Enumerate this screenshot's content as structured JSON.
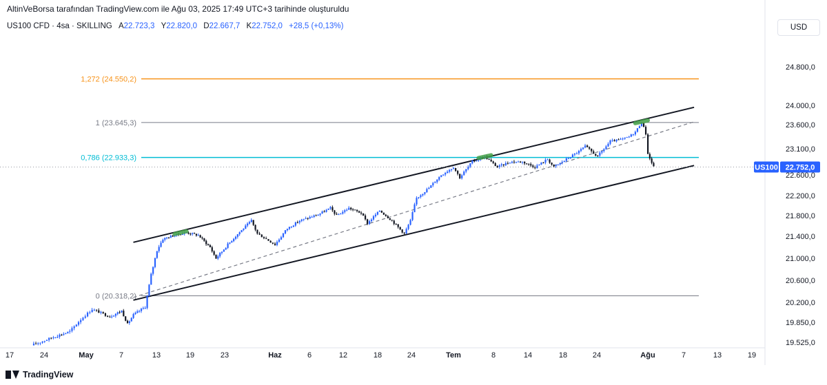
{
  "header": {
    "attribution": "AltinVeBorsa tarafından TradingView.com ile Ağu 03, 2025 17:49 UTC+3 tarihinde oluşturuldu"
  },
  "legend": {
    "symbol": "US100 CFD · 4sa · SKILLING",
    "open_label": "A",
    "open": "22.723,3",
    "high_label": "Y",
    "high": "22.820,0",
    "low_label": "D",
    "low": "22.667,7",
    "close_label": "K",
    "close": "22.752,0",
    "change": "+28,5 (+0,13%)"
  },
  "currency_button": "USD",
  "footer": {
    "brand": "TradingView"
  },
  "chart_data": {
    "type": "candlestick",
    "price_axis": {
      "ticks": [
        24800,
        24000,
        23600,
        23100,
        22600,
        22200,
        21800,
        21400,
        21000,
        20600,
        20200,
        19850,
        19525
      ],
      "tick_labels": [
        "24.800,0",
        "24.000,0",
        "23.600,0",
        "23.100,0",
        "22.600,0",
        "22.200,0",
        "21.800,0",
        "21.400,0",
        "21.000,0",
        "20.600,0",
        "20.200,0",
        "19.850,0",
        "19.525,0"
      ]
    },
    "time_axis": {
      "labels": [
        "17",
        "24",
        "May",
        "7",
        "13",
        "19",
        "23",
        "Haz",
        "6",
        "12",
        "18",
        "24",
        "Tem",
        "8",
        "14",
        "18",
        "24",
        "Ağu",
        "7",
        "13",
        "19"
      ],
      "bold": [
        "May",
        "Haz",
        "Tem",
        "Ağu"
      ]
    },
    "fib_levels": [
      {
        "label": "1,272 (24.550,2)",
        "price": 24550.2,
        "color": "#f7931a"
      },
      {
        "label": "1 (23.645,3)",
        "price": 23645.3,
        "color": "#787b86"
      },
      {
        "label": "0,786 (22.933,3)",
        "price": 22933.3,
        "color": "#00bcd4"
      },
      {
        "label": "0 (20.318,2)",
        "price": 20318.2,
        "color": "#787b86"
      }
    ],
    "last_price": {
      "symbol": "US100",
      "value": "22.752,0",
      "price": 22752.0
    },
    "channel": {
      "upper": {
        "from": [
          "2025-05-09",
          21290
        ],
        "to": [
          "2025-08-09",
          23960
        ]
      },
      "lower": {
        "from": [
          "2025-05-09",
          20240
        ],
        "to": [
          "2025-08-09",
          22780
        ]
      },
      "mid": {
        "from": [
          "2025-05-09",
          20290
        ],
        "to": [
          "2025-08-09",
          23660
        ]
      }
    },
    "price_path": [
      [
        "2025-04-21",
        19475
      ],
      [
        "2025-04-25",
        19610
      ],
      [
        "2025-04-28",
        19700
      ],
      [
        "2025-04-30",
        19900
      ],
      [
        "2025-05-02",
        20080
      ],
      [
        "2025-05-05",
        19950
      ],
      [
        "2025-05-07",
        20050
      ],
      [
        "2025-05-08",
        19820
      ],
      [
        "2025-05-09",
        19980
      ],
      [
        "2025-05-11",
        20120
      ],
      [
        "2025-05-12",
        20700
      ],
      [
        "2025-05-13",
        21150
      ],
      [
        "2025-05-14",
        21350
      ],
      [
        "2025-05-16",
        21420
      ],
      [
        "2025-05-18",
        21470
      ],
      [
        "2025-05-20",
        21420
      ],
      [
        "2025-05-22",
        21200
      ],
      [
        "2025-05-23",
        21000
      ],
      [
        "2025-05-25",
        21250
      ],
      [
        "2025-05-27",
        21480
      ],
      [
        "2025-05-29",
        21700
      ],
      [
        "2025-05-30",
        21450
      ],
      [
        "2025-06-02",
        21250
      ],
      [
        "2025-06-04",
        21550
      ],
      [
        "2025-06-06",
        21700
      ],
      [
        "2025-06-09",
        21820
      ],
      [
        "2025-06-11",
        21950
      ],
      [
        "2025-06-12",
        21800
      ],
      [
        "2025-06-14",
        21950
      ],
      [
        "2025-06-16",
        21850
      ],
      [
        "2025-06-17",
        21650
      ],
      [
        "2025-06-19",
        21900
      ],
      [
        "2025-06-21",
        21700
      ],
      [
        "2025-06-23",
        21450
      ],
      [
        "2025-06-24",
        21700
      ],
      [
        "2025-06-25",
        22150
      ],
      [
        "2025-06-27",
        22350
      ],
      [
        "2025-06-29",
        22600
      ],
      [
        "2025-07-01",
        22750
      ],
      [
        "2025-07-02",
        22550
      ],
      [
        "2025-07-04",
        22850
      ],
      [
        "2025-07-06",
        22950
      ],
      [
        "2025-07-08",
        22750
      ],
      [
        "2025-07-10",
        22850
      ],
      [
        "2025-07-12",
        22850
      ],
      [
        "2025-07-14",
        22750
      ],
      [
        "2025-07-16",
        22900
      ],
      [
        "2025-07-17",
        22750
      ],
      [
        "2025-07-19",
        22900
      ],
      [
        "2025-07-21",
        23050
      ],
      [
        "2025-07-22",
        23150
      ],
      [
        "2025-07-24",
        22950
      ],
      [
        "2025-07-26",
        23250
      ],
      [
        "2025-07-28",
        23300
      ],
      [
        "2025-07-29",
        23350
      ],
      [
        "2025-07-30",
        23450
      ],
      [
        "2025-07-31",
        23650
      ],
      [
        "2025-08-01",
        23300
      ],
      [
        "2025-08-01",
        23000
      ],
      [
        "2025-08-02",
        22750
      ]
    ],
    "highlights": [
      {
        "from": "2025-05-16",
        "to": "2025-05-18",
        "price": 21470,
        "color": "#43a047"
      },
      {
        "from": "2025-07-05",
        "to": "2025-07-07",
        "price": 22950,
        "color": "#43a047"
      },
      {
        "from": "2025-07-30",
        "to": "2025-08-01",
        "price": 23660,
        "color": "#43a047"
      }
    ],
    "up_color": "#2962ff",
    "down_color": "#131722",
    "grid": false
  }
}
